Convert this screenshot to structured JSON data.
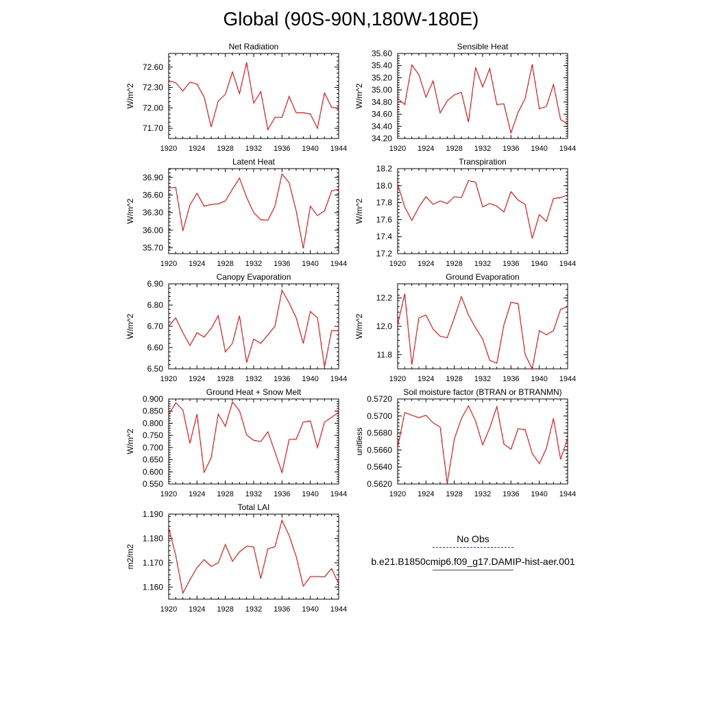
{
  "title": "Global (90S-90N,180W-180E)",
  "legend": [
    {
      "label": "No Obs",
      "style": "dashed",
      "color": "#3333aa"
    },
    {
      "label": "b.e21.B1850cmip6.f09_g17.DAMIP-hist-aer.001",
      "style": "solid",
      "color": "#ff0000"
    }
  ],
  "chart_data": [
    {
      "type": "line",
      "title": "Net Radiation",
      "ylabel": "W/m^2",
      "xlim": [
        1920,
        1944
      ],
      "ylim": [
        71.55,
        72.8
      ],
      "xticks": [
        "1920",
        "1924",
        "1928",
        "1932",
        "1936",
        "1940",
        "1944"
      ],
      "yticks": [
        "71.70",
        "72.00",
        "72.30",
        "72.60"
      ],
      "series": [
        {
          "color": "#ff0000",
          "x": [
            1920,
            1921,
            1922,
            1923,
            1924,
            1925,
            1926,
            1927,
            1928,
            1929,
            1930,
            1931,
            1932,
            1933,
            1934,
            1935,
            1936,
            1937,
            1938,
            1939,
            1940,
            1941,
            1942,
            1943,
            1944
          ],
          "y": [
            72.4,
            72.37,
            72.25,
            72.38,
            72.35,
            72.16,
            71.72,
            72.1,
            72.2,
            72.53,
            72.21,
            72.67,
            72.07,
            72.24,
            71.68,
            71.86,
            71.86,
            72.17,
            71.93,
            71.93,
            71.91,
            71.7,
            72.22,
            72.01,
            71.99
          ]
        }
      ]
    },
    {
      "type": "line",
      "title": "Sensible Heat",
      "ylabel": "W/m^2",
      "xlim": [
        1920,
        1944
      ],
      "ylim": [
        34.2,
        35.6
      ],
      "xticks": [
        "1920",
        "1924",
        "1928",
        "1932",
        "1936",
        "1940",
        "1944"
      ],
      "yticks": [
        "34.20",
        "34.40",
        "34.60",
        "34.80",
        "35.00",
        "35.20",
        "35.40",
        "35.60"
      ],
      "series": [
        {
          "color": "#ff0000",
          "x": [
            1920,
            1921,
            1922,
            1923,
            1924,
            1925,
            1926,
            1927,
            1928,
            1929,
            1930,
            1931,
            1932,
            1933,
            1934,
            1935,
            1936,
            1937,
            1938,
            1939,
            1940,
            1941,
            1942,
            1943,
            1944
          ],
          "y": [
            34.86,
            34.76,
            35.41,
            35.25,
            34.88,
            35.15,
            34.62,
            34.82,
            34.92,
            34.96,
            34.47,
            35.37,
            35.05,
            35.35,
            34.76,
            34.77,
            34.29,
            34.63,
            34.86,
            35.42,
            34.69,
            34.73,
            35.09,
            34.51,
            34.44
          ]
        }
      ]
    },
    {
      "type": "line",
      "title": "Latent Heat",
      "ylabel": "W/m^2",
      "xlim": [
        1920,
        1944
      ],
      "ylim": [
        35.6,
        37.05
      ],
      "xticks": [
        "1920",
        "1924",
        "1928",
        "1932",
        "1936",
        "1940",
        "1944"
      ],
      "yticks": [
        "35.70",
        "36.00",
        "36.30",
        "36.60",
        "36.90"
      ],
      "series": [
        {
          "color": "#ff0000",
          "x": [
            1920,
            1921,
            1922,
            1923,
            1924,
            1925,
            1926,
            1927,
            1928,
            1929,
            1930,
            1931,
            1932,
            1933,
            1934,
            1935,
            1936,
            1937,
            1938,
            1939,
            1940,
            1941,
            1942,
            1943,
            1944
          ],
          "y": [
            36.72,
            36.73,
            35.99,
            36.43,
            36.63,
            36.41,
            36.44,
            36.45,
            36.5,
            36.7,
            36.89,
            36.56,
            36.3,
            36.18,
            36.17,
            36.41,
            36.96,
            36.81,
            36.33,
            35.69,
            36.41,
            36.25,
            36.33,
            36.67,
            36.7
          ]
        }
      ]
    },
    {
      "type": "line",
      "title": "Transpiration",
      "ylabel": "W/m^2",
      "xlim": [
        1920,
        1944
      ],
      "ylim": [
        17.2,
        18.2
      ],
      "xticks": [
        "1920",
        "1924",
        "1928",
        "1932",
        "1936",
        "1940",
        "1944"
      ],
      "yticks": [
        "17.2",
        "17.4",
        "17.6",
        "17.8",
        "18.0",
        "18.2"
      ],
      "series": [
        {
          "color": "#ff0000",
          "x": [
            1920,
            1921,
            1922,
            1923,
            1924,
            1925,
            1926,
            1927,
            1928,
            1929,
            1930,
            1931,
            1932,
            1933,
            1934,
            1935,
            1936,
            1937,
            1938,
            1939,
            1940,
            1941,
            1942,
            1943,
            1944
          ],
          "y": [
            18.02,
            17.75,
            17.59,
            17.75,
            17.87,
            17.78,
            17.82,
            17.79,
            17.87,
            17.86,
            18.06,
            18.04,
            17.75,
            17.79,
            17.76,
            17.69,
            17.93,
            17.83,
            17.78,
            17.38,
            17.66,
            17.58,
            17.85,
            17.86,
            17.89
          ]
        }
      ]
    },
    {
      "type": "line",
      "title": "Canopy Evaporation",
      "ylabel": "W/m^2",
      "xlim": [
        1920,
        1944
      ],
      "ylim": [
        6.5,
        6.9
      ],
      "xticks": [
        "1920",
        "1924",
        "1928",
        "1932",
        "1936",
        "1940",
        "1944"
      ],
      "yticks": [
        "6.50",
        "6.60",
        "6.70",
        "6.80",
        "6.90"
      ],
      "series": [
        {
          "color": "#ff0000",
          "x": [
            1920,
            1921,
            1922,
            1923,
            1924,
            1925,
            1926,
            1927,
            1928,
            1929,
            1930,
            1931,
            1932,
            1933,
            1934,
            1935,
            1936,
            1937,
            1938,
            1939,
            1940,
            1941,
            1942,
            1943,
            1944
          ],
          "y": [
            6.7,
            6.74,
            6.67,
            6.61,
            6.67,
            6.65,
            6.69,
            6.75,
            6.58,
            6.62,
            6.75,
            6.53,
            6.64,
            6.62,
            6.66,
            6.7,
            6.87,
            6.81,
            6.74,
            6.62,
            6.77,
            6.74,
            6.51,
            6.68,
            6.68
          ]
        }
      ]
    },
    {
      "type": "line",
      "title": "Ground Evaporation",
      "ylabel": "W/m^2",
      "xlim": [
        1920,
        1944
      ],
      "ylim": [
        11.7,
        12.3
      ],
      "xticks": [
        "1920",
        "1924",
        "1928",
        "1932",
        "1936",
        "1940",
        "1944"
      ],
      "yticks": [
        "11.8",
        "12.0",
        "12.2"
      ],
      "series": [
        {
          "color": "#ff0000",
          "x": [
            1920,
            1921,
            1922,
            1923,
            1924,
            1925,
            1926,
            1927,
            1928,
            1929,
            1930,
            1931,
            1932,
            1933,
            1934,
            1935,
            1936,
            1937,
            1938,
            1939,
            1940,
            1941,
            1942,
            1943,
            1944
          ],
          "y": [
            12.01,
            12.23,
            11.73,
            12.06,
            12.08,
            11.98,
            11.93,
            11.92,
            12.06,
            12.21,
            12.08,
            11.99,
            11.91,
            11.76,
            11.74,
            12.01,
            12.17,
            12.16,
            11.8,
            11.7,
            11.97,
            11.94,
            11.97,
            12.12,
            12.14
          ]
        }
      ]
    },
    {
      "type": "line",
      "title": "Ground Heat + Snow Melt",
      "ylabel": "W/m^2",
      "xlim": [
        1920,
        1944
      ],
      "ylim": [
        0.55,
        0.9
      ],
      "xticks": [
        "1920",
        "1924",
        "1928",
        "1932",
        "1936",
        "1940",
        "1944"
      ],
      "yticks": [
        "0.550",
        "0.600",
        "0.650",
        "0.700",
        "0.750",
        "0.800",
        "0.850",
        "0.900"
      ],
      "series": [
        {
          "color": "#ff0000",
          "x": [
            1920,
            1921,
            1922,
            1923,
            1924,
            1925,
            1926,
            1927,
            1928,
            1929,
            1930,
            1931,
            1932,
            1933,
            1934,
            1935,
            1936,
            1937,
            1938,
            1939,
            1940,
            1941,
            1942,
            1943,
            1944
          ],
          "y": [
            0.835,
            0.885,
            0.855,
            0.718,
            0.838,
            0.598,
            0.658,
            0.838,
            0.788,
            0.888,
            0.852,
            0.752,
            0.73,
            0.725,
            0.765,
            0.682,
            0.597,
            0.733,
            0.735,
            0.805,
            0.81,
            0.7,
            0.805,
            0.825,
            0.845
          ]
        }
      ]
    },
    {
      "type": "line",
      "title": "Soil moisture factor (BTRAN or BTRANMN)",
      "ylabel": "unitless",
      "xlim": [
        1920,
        1944
      ],
      "ylim": [
        0.562,
        0.572
      ],
      "xticks": [
        "1920",
        "1924",
        "1928",
        "1932",
        "1936",
        "1940",
        "1944"
      ],
      "yticks": [
        "0.5620",
        "0.5640",
        "0.5660",
        "0.5680",
        "0.5700",
        "0.5720"
      ],
      "series": [
        {
          "color": "#ff0000",
          "x": [
            1920,
            1921,
            1922,
            1923,
            1924,
            1925,
            1926,
            1927,
            1928,
            1929,
            1930,
            1931,
            1932,
            1933,
            1934,
            1935,
            1936,
            1937,
            1938,
            1939,
            1940,
            1941,
            1942,
            1943,
            1944
          ],
          "y": [
            0.5663,
            0.5704,
            0.5701,
            0.5698,
            0.5701,
            0.5692,
            0.5687,
            0.5621,
            0.5673,
            0.5697,
            0.5712,
            0.5694,
            0.5666,
            0.5686,
            0.5711,
            0.5667,
            0.5661,
            0.5685,
            0.5684,
            0.5656,
            0.5644,
            0.5662,
            0.5697,
            0.5649,
            0.5674
          ]
        }
      ]
    },
    {
      "type": "line",
      "title": "Total LAI",
      "ylabel": "m2/m2",
      "xlim": [
        1920,
        1944
      ],
      "ylim": [
        1.155,
        1.19
      ],
      "xticks": [
        "1920",
        "1924",
        "1928",
        "1932",
        "1936",
        "1940",
        "1944"
      ],
      "yticks": [
        "1.160",
        "1.170",
        "1.180",
        "1.190"
      ],
      "series": [
        {
          "color": "#ff0000",
          "x": [
            1920,
            1921,
            1922,
            1923,
            1924,
            1925,
            1926,
            1927,
            1928,
            1929,
            1930,
            1931,
            1932,
            1933,
            1934,
            1935,
            1936,
            1937,
            1938,
            1939,
            1940,
            1941,
            1942,
            1943,
            1944
          ],
          "y": [
            1.1845,
            1.173,
            1.1575,
            1.163,
            1.168,
            1.1713,
            1.1685,
            1.17,
            1.1775,
            1.1706,
            1.1745,
            1.1768,
            1.1765,
            1.1635,
            1.1758,
            1.1766,
            1.1875,
            1.1812,
            1.1726,
            1.1604,
            1.1643,
            1.1643,
            1.1642,
            1.1676,
            1.1613
          ]
        }
      ]
    }
  ]
}
